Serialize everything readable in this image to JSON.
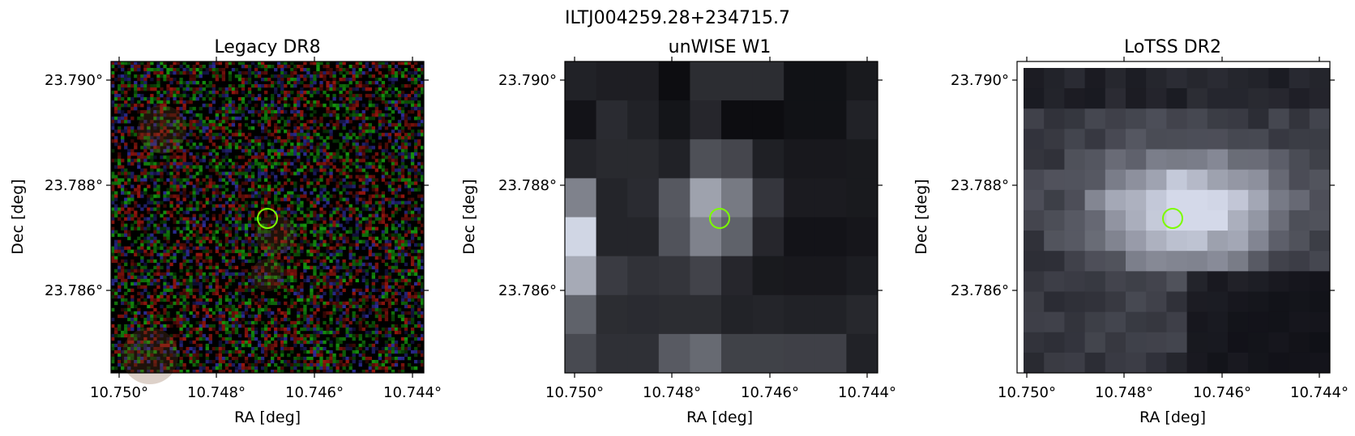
{
  "figure": {
    "title": "ILTJ004259.28+234715.7"
  },
  "panels": [
    {
      "id": "legacy",
      "title": "Legacy DR8",
      "xlabel": "RA [deg]",
      "ylabel": "Dec [deg]",
      "xticks": [
        "10.750°",
        "10.748°",
        "10.746°",
        "10.744°"
      ],
      "yticks": [
        "23.790°",
        "23.788°",
        "23.786°"
      ],
      "style": "rgb-noise"
    },
    {
      "id": "unwise",
      "title": "unWISE W1",
      "xlabel": "RA [deg]",
      "ylabel": "Dec [deg]",
      "xticks": [
        "10.750°",
        "10.748°",
        "10.746°",
        "10.744°"
      ],
      "yticks": [
        "23.790°",
        "23.788°",
        "23.786°"
      ],
      "style": "grayscale-coarse"
    },
    {
      "id": "lotss",
      "title": "LoTSS DR2",
      "xlabel": "RA [deg]",
      "ylabel": "Dec [deg]",
      "xticks": [
        "10.750°",
        "10.748°",
        "10.746°",
        "10.744°"
      ],
      "yticks": [
        "23.790°",
        "23.788°",
        "23.786°"
      ],
      "style": "grayscale-fine"
    }
  ],
  "marker": {
    "color": "#7cfc00",
    "shape": "circle"
  }
}
